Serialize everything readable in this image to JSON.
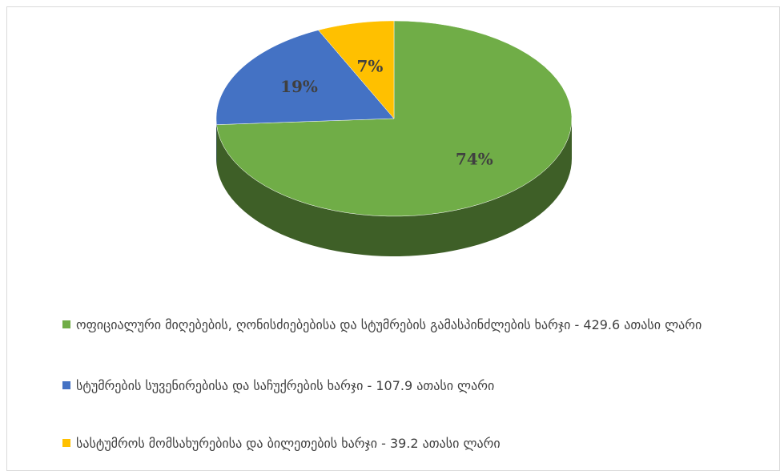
{
  "chart_data": {
    "type": "pie",
    "categories": [
      "ოფიციალური მიღებების, ღონისძიებებისა და სტუმრების გამასპინძლების ხარჯი - 429.6 ათასი ლარი",
      "სტუმრების სუვენირებისა და საჩუქრების ხარჯი - 107.9 ათასი ლარი",
      "სასტუმროს მომსახურებისა და ბილეთების ხარჯი - 39.2 ათასი ლარი"
    ],
    "values": [
      74,
      19,
      7
    ],
    "value_labels": [
      "74%",
      "19%",
      "7%"
    ],
    "colors": [
      "#70ad47",
      "#4472c4",
      "#ffc000"
    ],
    "legend": "bottom"
  }
}
